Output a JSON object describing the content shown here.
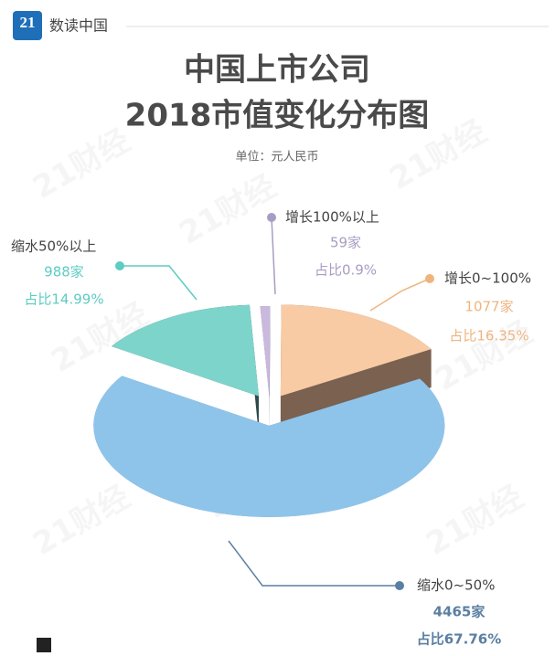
{
  "header": {
    "logo": "21",
    "brand": "数读中国"
  },
  "watermark": "21财经",
  "chart_data": {
    "type": "pie3d",
    "title_lines": [
      "中国上市公司",
      "2018市值变化分布图"
    ],
    "unit_note": "单位：元人民币",
    "categories": [
      "增长100%以上",
      "增长0~100%",
      "缩水0~50%",
      "缩水50%以上"
    ],
    "values": [
      0.9,
      16.35,
      67.76,
      14.99
    ],
    "value_labels": [
      "占比0.9%",
      "占比16.35%",
      "占比67.76%",
      "占比14.99%"
    ],
    "counts": [
      59,
      1077,
      4465,
      988
    ],
    "count_labels": [
      "59家",
      "1077家",
      "4465家",
      "988家"
    ],
    "colors": [
      "#c8b9dd",
      "#f8cba4",
      "#8fc4ea",
      "#7dd4ca"
    ],
    "side_colors": [
      "#8a7aa6",
      "#7a6150",
      "#6790b8",
      "#2d4a4c"
    ],
    "label_colors": [
      "#a99cc4",
      "#efb47e",
      "#5b7fa2",
      "#5dccc3"
    ]
  }
}
